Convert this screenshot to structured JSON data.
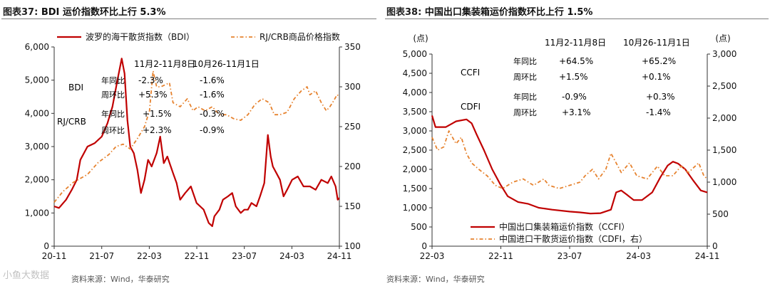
{
  "colors": {
    "primary": "#c00000",
    "secondary": "#e6822e",
    "axis": "#333333",
    "grid_rule": "#7f7f7f",
    "source_text": "#555555"
  },
  "left": {
    "title_num": "图表37:",
    "title_text": "BDI 运价指数环比上行 5.3%",
    "source": "资料来源：Wind，华泰研究",
    "watermark": "小鱼大数据",
    "annotations": {
      "h1": "11月2-11月8日",
      "h2": "10月26-11月1日",
      "bdi": "BDI",
      "rj": "RJ/CRB",
      "yoy": "年同比",
      "wow": "周环比",
      "bdi_yoy_1": "-2.3%",
      "bdi_wow_1": "+5.3%",
      "bdi_yoy_2": "-1.6%",
      "bdi_wow_2": "-1.6%",
      "rj_yoy_1": "+1.5%",
      "rj_wow_1": "+2.3%",
      "rj_yoy_2": "-0.3%",
      "rj_wow_2": "-0.9%"
    }
  },
  "right": {
    "title_num": "图表38:",
    "title_text": "中国出口集装箱运价指数环比上行 1.5%",
    "source": "资料来源：Wind，华泰研究",
    "annotations": {
      "h1": "11月2-11月8日",
      "h2": "10月26-11月1日",
      "ccfi": "CCFI",
      "cdfi": "CDFI",
      "yoy": "年同比",
      "wow": "周环比",
      "ccfi_yoy_1": "+64.5%",
      "ccfi_wow_1": "+1.5%",
      "ccfi_yoy_2": "+65.2%",
      "ccfi_wow_2": "+0.1%",
      "cdfi_yoy_1": "-0.9%",
      "cdfi_wow_1": "+3.1%",
      "cdfi_yoy_2": "+0.3%",
      "cdfi_wow_2": "-1.4%"
    }
  },
  "chart_data": [
    {
      "type": "line",
      "title": "BDI 运价指数环比上行 5.3%",
      "x_range": [
        2020.833,
        2024.833
      ],
      "x_ticks": [
        {
          "t": 2020.833,
          "label": "20-11"
        },
        {
          "t": 2021.5,
          "label": "21-07"
        },
        {
          "t": 2022.167,
          "label": "22-03"
        },
        {
          "t": 2022.833,
          "label": "22-11"
        },
        {
          "t": 2023.5,
          "label": "23-07"
        },
        {
          "t": 2024.167,
          "label": "24-03"
        },
        {
          "t": 2024.833,
          "label": "24-11"
        }
      ],
      "ylim_left": [
        0,
        6000
      ],
      "yticks_left": [
        0,
        1000,
        2000,
        3000,
        4000,
        5000,
        6000
      ],
      "ytick_labels_left": [
        "0",
        "1,000",
        "2,000",
        "3,000",
        "4,000",
        "5,000",
        "6,000"
      ],
      "ylim_right": [
        100,
        350
      ],
      "yticks_right": [
        100,
        150,
        200,
        250,
        300,
        350
      ],
      "ytick_labels_right": [
        "100",
        "150",
        "200",
        "250",
        "300",
        "350"
      ],
      "legend_position": "top",
      "series": [
        {
          "name": "波罗的海干散货指数（BDI）",
          "axis": "left",
          "style": "solid",
          "points": [
            [
              2020.833,
              1200
            ],
            [
              2020.9,
              1150
            ],
            [
              2021.0,
              1400
            ],
            [
              2021.08,
              1700
            ],
            [
              2021.15,
              2000
            ],
            [
              2021.2,
              2600
            ],
            [
              2021.3,
              3000
            ],
            [
              2021.4,
              3100
            ],
            [
              2021.5,
              3300
            ],
            [
              2021.58,
              3700
            ],
            [
              2021.65,
              4200
            ],
            [
              2021.72,
              5000
            ],
            [
              2021.78,
              5650
            ],
            [
              2021.82,
              5200
            ],
            [
              2021.86,
              3800
            ],
            [
              2021.9,
              3000
            ],
            [
              2021.95,
              2800
            ],
            [
              2022.0,
              2300
            ],
            [
              2022.05,
              1600
            ],
            [
              2022.1,
              2000
            ],
            [
              2022.15,
              2600
            ],
            [
              2022.2,
              2400
            ],
            [
              2022.27,
              2800
            ],
            [
              2022.32,
              3300
            ],
            [
              2022.37,
              2500
            ],
            [
              2022.42,
              2700
            ],
            [
              2022.5,
              2200
            ],
            [
              2022.55,
              1900
            ],
            [
              2022.6,
              1400
            ],
            [
              2022.67,
              1600
            ],
            [
              2022.75,
              1800
            ],
            [
              2022.83,
              1300
            ],
            [
              2022.88,
              1200
            ],
            [
              2022.93,
              1100
            ],
            [
              2023.0,
              700
            ],
            [
              2023.05,
              600
            ],
            [
              2023.08,
              900
            ],
            [
              2023.15,
              1100
            ],
            [
              2023.2,
              1400
            ],
            [
              2023.27,
              1500
            ],
            [
              2023.33,
              1600
            ],
            [
              2023.38,
              1200
            ],
            [
              2023.45,
              1000
            ],
            [
              2023.5,
              1100
            ],
            [
              2023.55,
              1100
            ],
            [
              2023.6,
              1300
            ],
            [
              2023.67,
              1200
            ],
            [
              2023.72,
              1500
            ],
            [
              2023.78,
              1900
            ],
            [
              2023.83,
              3350
            ],
            [
              2023.87,
              2700
            ],
            [
              2023.9,
              2400
            ],
            [
              2023.95,
              2200
            ],
            [
              2024.0,
              2000
            ],
            [
              2024.05,
              1500
            ],
            [
              2024.1,
              1700
            ],
            [
              2024.17,
              2000
            ],
            [
              2024.25,
              2100
            ],
            [
              2024.33,
              1800
            ],
            [
              2024.42,
              1800
            ],
            [
              2024.5,
              1700
            ],
            [
              2024.58,
              2000
            ],
            [
              2024.67,
              1900
            ],
            [
              2024.72,
              2100
            ],
            [
              2024.78,
              1800
            ],
            [
              2024.81,
              1400
            ],
            [
              2024.833,
              1450
            ]
          ]
        },
        {
          "name": "RJ/CRB商品价格指数",
          "axis": "right",
          "style": "dashdot",
          "points": [
            [
              2020.833,
              155
            ],
            [
              2020.95,
              168
            ],
            [
              2021.1,
              180
            ],
            [
              2021.3,
              190
            ],
            [
              2021.45,
              205
            ],
            [
              2021.6,
              215
            ],
            [
              2021.7,
              225
            ],
            [
              2021.8,
              228
            ],
            [
              2021.9,
              222
            ],
            [
              2022.0,
              235
            ],
            [
              2022.1,
              250
            ],
            [
              2022.17,
              270
            ],
            [
              2022.22,
              320
            ],
            [
              2022.27,
              300
            ],
            [
              2022.33,
              300
            ],
            [
              2022.45,
              305
            ],
            [
              2022.5,
              280
            ],
            [
              2022.6,
              275
            ],
            [
              2022.7,
              285
            ],
            [
              2022.78,
              270
            ],
            [
              2022.85,
              275
            ],
            [
              2022.95,
              270
            ],
            [
              2023.05,
              275
            ],
            [
              2023.15,
              265
            ],
            [
              2023.25,
              265
            ],
            [
              2023.35,
              260
            ],
            [
              2023.45,
              258
            ],
            [
              2023.55,
              265
            ],
            [
              2023.65,
              278
            ],
            [
              2023.75,
              285
            ],
            [
              2023.85,
              280
            ],
            [
              2023.92,
              265
            ],
            [
              2024.0,
              265
            ],
            [
              2024.1,
              268
            ],
            [
              2024.2,
              285
            ],
            [
              2024.3,
              295
            ],
            [
              2024.38,
              300
            ],
            [
              2024.42,
              290
            ],
            [
              2024.5,
              295
            ],
            [
              2024.58,
              280
            ],
            [
              2024.65,
              270
            ],
            [
              2024.7,
              275
            ],
            [
              2024.75,
              282
            ],
            [
              2024.8,
              290
            ],
            [
              2024.833,
              288
            ]
          ]
        }
      ]
    },
    {
      "type": "line",
      "title": "中国出口集装箱运价指数环比上行 1.5%",
      "x_range": [
        2022.167,
        2024.833
      ],
      "x_ticks": [
        {
          "t": 2022.167,
          "label": "22-03"
        },
        {
          "t": 2022.833,
          "label": "22-11"
        },
        {
          "t": 2023.5,
          "label": "23-07"
        },
        {
          "t": 2024.167,
          "label": "24-03"
        },
        {
          "t": 2024.833,
          "label": "24-11"
        }
      ],
      "ylim_left": [
        0,
        5000
      ],
      "yticks_left": [
        0,
        500,
        1000,
        1500,
        2000,
        2500,
        3000,
        3500,
        4000,
        4500,
        5000
      ],
      "ytick_labels_left": [
        "0",
        "500",
        "1,000",
        "1,500",
        "2,000",
        "2,500",
        "3,000",
        "3,500",
        "4,000",
        "4,500",
        "5,000"
      ],
      "ylim_right": [
        0,
        3000
      ],
      "yticks_right": [
        0,
        500,
        1000,
        1500,
        2000,
        2500,
        3000
      ],
      "ytick_labels_right": [
        "0",
        "500",
        "1,000",
        "1,500",
        "2,000",
        "2,500",
        "3,000"
      ],
      "unit_left": "(点)",
      "unit_right": "(点)",
      "legend_position": "bottom-left",
      "series": [
        {
          "name": "中国出口集装箱运价指数（CCFI）",
          "axis": "left",
          "style": "solid",
          "points": [
            [
              2022.167,
              3400
            ],
            [
              2022.2,
              3100
            ],
            [
              2022.3,
              3100
            ],
            [
              2022.4,
              3250
            ],
            [
              2022.5,
              3300
            ],
            [
              2022.55,
              3200
            ],
            [
              2022.6,
              2900
            ],
            [
              2022.67,
              2500
            ],
            [
              2022.75,
              2000
            ],
            [
              2022.83,
              1600
            ],
            [
              2022.9,
              1300
            ],
            [
              2023.0,
              1150
            ],
            [
              2023.1,
              1100
            ],
            [
              2023.2,
              1000
            ],
            [
              2023.33,
              950
            ],
            [
              2023.5,
              900
            ],
            [
              2023.6,
              880
            ],
            [
              2023.7,
              850
            ],
            [
              2023.8,
              860
            ],
            [
              2023.9,
              950
            ],
            [
              2023.95,
              1400
            ],
            [
              2024.0,
              1450
            ],
            [
              2024.05,
              1350
            ],
            [
              2024.12,
              1200
            ],
            [
              2024.2,
              1200
            ],
            [
              2024.3,
              1400
            ],
            [
              2024.38,
              1800
            ],
            [
              2024.45,
              2100
            ],
            [
              2024.5,
              2200
            ],
            [
              2024.55,
              2150
            ],
            [
              2024.62,
              2000
            ],
            [
              2024.7,
              1700
            ],
            [
              2024.77,
              1450
            ],
            [
              2024.833,
              1400
            ]
          ]
        },
        {
          "name": "中国进口干散货运价指数（CDFI，右）",
          "axis": "right",
          "style": "dashdot",
          "points": [
            [
              2022.167,
              1700
            ],
            [
              2022.22,
              1500
            ],
            [
              2022.28,
              1550
            ],
            [
              2022.33,
              1800
            ],
            [
              2022.4,
              1600
            ],
            [
              2022.45,
              1700
            ],
            [
              2022.5,
              1450
            ],
            [
              2022.55,
              1300
            ],
            [
              2022.62,
              1200
            ],
            [
              2022.7,
              1100
            ],
            [
              2022.78,
              950
            ],
            [
              2022.85,
              900
            ],
            [
              2022.95,
              1000
            ],
            [
              2023.05,
              1050
            ],
            [
              2023.15,
              950
            ],
            [
              2023.25,
              1050
            ],
            [
              2023.3,
              950
            ],
            [
              2023.4,
              900
            ],
            [
              2023.5,
              950
            ],
            [
              2023.6,
              1000
            ],
            [
              2023.65,
              1100
            ],
            [
              2023.72,
              1200
            ],
            [
              2023.78,
              1050
            ],
            [
              2023.85,
              1200
            ],
            [
              2023.9,
              1450
            ],
            [
              2023.95,
              1300
            ],
            [
              2024.0,
              1150
            ],
            [
              2024.08,
              1300
            ],
            [
              2024.15,
              1100
            ],
            [
              2024.25,
              1050
            ],
            [
              2024.35,
              1250
            ],
            [
              2024.42,
              1100
            ],
            [
              2024.5,
              1100
            ],
            [
              2024.58,
              1250
            ],
            [
              2024.65,
              1150
            ],
            [
              2024.75,
              1300
            ],
            [
              2024.8,
              1100
            ],
            [
              2024.833,
              1050
            ]
          ]
        }
      ]
    }
  ]
}
